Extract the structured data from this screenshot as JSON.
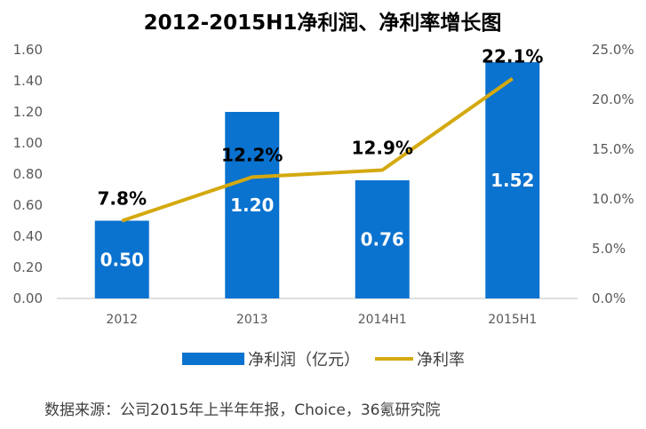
{
  "chart_data": {
    "type": "bar",
    "title": "2012-2015H1净利润、净利率增长图",
    "categories": [
      "2012",
      "2013",
      "2014H1",
      "2015H1"
    ],
    "series": [
      {
        "name": "净利润（亿元）",
        "type": "bar",
        "axis": "left",
        "values": [
          0.5,
          1.2,
          0.76,
          1.52
        ],
        "labels": [
          "0.50",
          "1.20",
          "0.76",
          "1.52"
        ]
      },
      {
        "name": "净利率",
        "type": "line",
        "axis": "right",
        "values": [
          7.8,
          12.2,
          12.9,
          22.1
        ],
        "labels": [
          "7.8%",
          "12.2%",
          "12.9%",
          "22.1%"
        ]
      }
    ],
    "ylim_left": [
      0,
      1.6
    ],
    "yticks_left": [
      "0.00",
      "0.20",
      "0.40",
      "0.60",
      "0.80",
      "1.00",
      "1.20",
      "1.40",
      "1.60"
    ],
    "ylim_right": [
      0,
      25
    ],
    "yticks_right": [
      "0.0%",
      "5.0%",
      "10.0%",
      "15.0%",
      "20.0%",
      "25.0%"
    ],
    "grid": false,
    "legend_position": "bottom",
    "colors": {
      "bar": "#0A72CF",
      "line": "#D4A90F",
      "axis": "#BFBFBF"
    }
  },
  "source": "数据来源：公司2015年上半年年报，Choice，36氪研究院"
}
